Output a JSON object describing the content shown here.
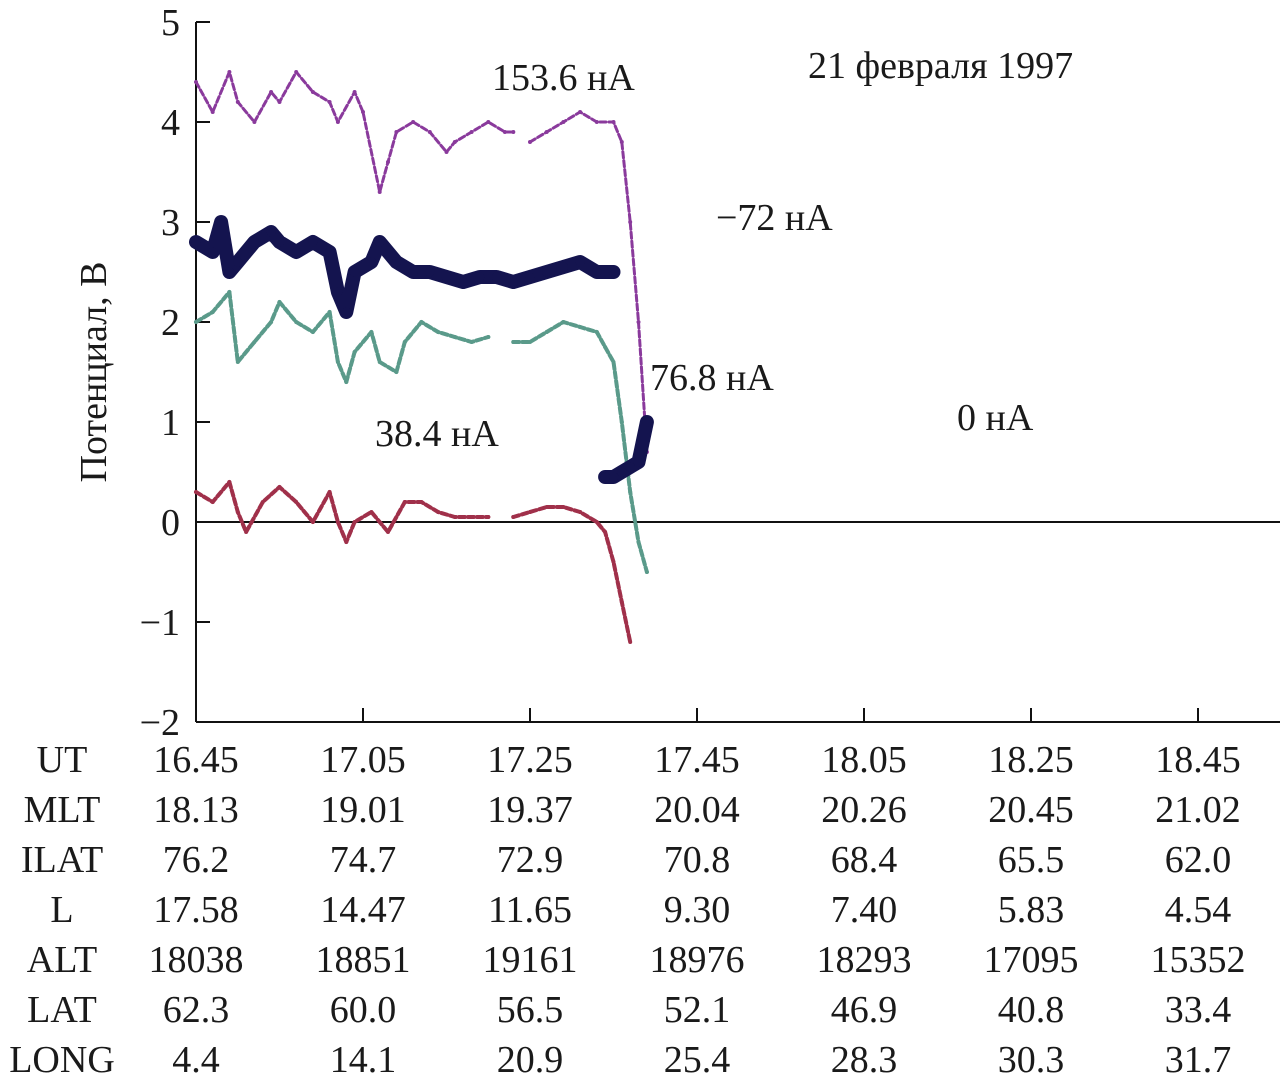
{
  "chart_data": {
    "type": "line",
    "title": "21 февраля 1997",
    "ylabel": "Потенциал, В",
    "ylim": [
      -2,
      5
    ],
    "yticks": [
      5,
      4,
      3,
      2,
      1,
      0,
      -1,
      -2
    ],
    "ytick_labels": [
      "5",
      "4",
      "3",
      "2",
      "1",
      "0",
      "−1",
      "−2"
    ],
    "x_ticks_ut": [
      "16.45",
      "17.05",
      "17.25",
      "17.45",
      "18.05",
      "18.25",
      "18.45"
    ],
    "zero_line": true,
    "series": [
      {
        "name": "153.6 нА",
        "color": "#8a3a9c",
        "points": [
          [
            0,
            4.4
          ],
          [
            2,
            4.1
          ],
          [
            4,
            4.5
          ],
          [
            5,
            4.2
          ],
          [
            7,
            4.0
          ],
          [
            9,
            4.3
          ],
          [
            10,
            4.2
          ],
          [
            12,
            4.5
          ],
          [
            14,
            4.3
          ],
          [
            16,
            4.2
          ],
          [
            17,
            4.0
          ],
          [
            19,
            4.3
          ],
          [
            20,
            4.1
          ],
          [
            22,
            3.3
          ],
          [
            23,
            3.6
          ],
          [
            24,
            3.9
          ],
          [
            26,
            4.0
          ],
          [
            28,
            3.9
          ],
          [
            30,
            3.7
          ],
          [
            31,
            3.8
          ],
          [
            33,
            3.9
          ],
          [
            35,
            4.0
          ],
          [
            37,
            3.9
          ],
          [
            38,
            3.9
          ],
          [
            null,
            null
          ],
          [
            40,
            3.8
          ],
          [
            42,
            3.9
          ],
          [
            44,
            4.0
          ],
          [
            46,
            4.1
          ],
          [
            48,
            4.0
          ],
          [
            50,
            4.0
          ],
          [
            51,
            3.8
          ],
          [
            52,
            3.0
          ],
          [
            53,
            2.0
          ],
          [
            54,
            0.7
          ]
        ]
      },
      {
        "name": "−72 нА",
        "color": "#14144f",
        "points": [
          [
            0,
            2.8
          ],
          [
            2,
            2.7
          ],
          [
            3,
            3.0
          ],
          [
            4,
            2.5
          ],
          [
            5,
            2.6
          ],
          [
            7,
            2.8
          ],
          [
            9,
            2.9
          ],
          [
            10,
            2.8
          ],
          [
            12,
            2.7
          ],
          [
            14,
            2.8
          ],
          [
            16,
            2.7
          ],
          [
            17,
            2.3
          ],
          [
            18,
            2.1
          ],
          [
            19,
            2.5
          ],
          [
            21,
            2.6
          ],
          [
            22,
            2.8
          ],
          [
            24,
            2.6
          ],
          [
            26,
            2.5
          ],
          [
            28,
            2.5
          ],
          [
            30,
            2.45
          ],
          [
            32,
            2.4
          ],
          [
            34,
            2.45
          ],
          [
            36,
            2.45
          ],
          [
            38,
            2.4
          ],
          [
            40,
            2.45
          ],
          [
            42,
            2.5
          ],
          [
            44,
            2.55
          ],
          [
            46,
            2.6
          ],
          [
            48,
            2.5
          ],
          [
            50,
            2.5
          ]
        ]
      },
      {
        "name": "76.8 нА",
        "color": "#5a9a8a",
        "points": [
          [
            0,
            2.0
          ],
          [
            2,
            2.1
          ],
          [
            4,
            2.3
          ],
          [
            5,
            1.6
          ],
          [
            7,
            1.8
          ],
          [
            9,
            2.0
          ],
          [
            10,
            2.2
          ],
          [
            12,
            2.0
          ],
          [
            14,
            1.9
          ],
          [
            16,
            2.1
          ],
          [
            17,
            1.6
          ],
          [
            18,
            1.4
          ],
          [
            19,
            1.7
          ],
          [
            21,
            1.9
          ],
          [
            22,
            1.6
          ],
          [
            24,
            1.5
          ],
          [
            25,
            1.8
          ],
          [
            27,
            2.0
          ],
          [
            29,
            1.9
          ],
          [
            31,
            1.85
          ],
          [
            33,
            1.8
          ],
          [
            35,
            1.85
          ],
          [
            null,
            null
          ],
          [
            38,
            1.8
          ],
          [
            40,
            1.8
          ],
          [
            42,
            1.9
          ],
          [
            44,
            2.0
          ],
          [
            46,
            1.95
          ],
          [
            48,
            1.9
          ],
          [
            49,
            1.75
          ],
          [
            50,
            1.6
          ],
          [
            51,
            1.0
          ],
          [
            52,
            0.3
          ],
          [
            53,
            -0.2
          ],
          [
            54,
            -0.5
          ]
        ]
      },
      {
        "name": "38.4 нА",
        "color": "#a0304a",
        "points": [
          [
            0,
            0.3
          ],
          [
            2,
            0.2
          ],
          [
            4,
            0.4
          ],
          [
            5,
            0.1
          ],
          [
            6,
            -0.1
          ],
          [
            8,
            0.2
          ],
          [
            10,
            0.35
          ],
          [
            12,
            0.2
          ],
          [
            14,
            0.0
          ],
          [
            16,
            0.3
          ],
          [
            17,
            0.0
          ],
          [
            18,
            -0.2
          ],
          [
            19,
            0.0
          ],
          [
            21,
            0.1
          ],
          [
            23,
            -0.1
          ],
          [
            25,
            0.2
          ],
          [
            27,
            0.2
          ],
          [
            29,
            0.1
          ],
          [
            31,
            0.05
          ],
          [
            33,
            0.05
          ],
          [
            35,
            0.05
          ],
          [
            null,
            null
          ],
          [
            38,
            0.05
          ],
          [
            40,
            0.1
          ],
          [
            42,
            0.15
          ],
          [
            44,
            0.15
          ],
          [
            46,
            0.1
          ],
          [
            48,
            0.0
          ],
          [
            49,
            -0.1
          ],
          [
            50,
            -0.4
          ],
          [
            51,
            -0.8
          ],
          [
            52,
            -1.2
          ]
        ]
      },
      {
        "name": "0 нА",
        "color": "#14144f",
        "points": [
          [
            49,
            0.45
          ],
          [
            50,
            0.45
          ],
          [
            51,
            0.5
          ],
          [
            52,
            0.55
          ],
          [
            53,
            0.6
          ],
          [
            54,
            1.0
          ]
        ]
      }
    ],
    "annotations": [
      "153.6 нА",
      "−72 нА",
      "76.8 нА",
      "38.4 нА",
      "0 нА"
    ],
    "table": {
      "rows": [
        {
          "label": "UT",
          "values": [
            "16.45",
            "17.05",
            "17.25",
            "17.45",
            "18.05",
            "18.25",
            "18.45"
          ]
        },
        {
          "label": "MLT",
          "values": [
            "18.13",
            "19.01",
            "19.37",
            "20.04",
            "20.26",
            "20.45",
            "21.02"
          ]
        },
        {
          "label": "ILAT",
          "values": [
            "76.2",
            "74.7",
            "72.9",
            "70.8",
            "68.4",
            "65.5",
            "62.0"
          ]
        },
        {
          "label": "L",
          "values": [
            "17.58",
            "14.47",
            "11.65",
            "9.30",
            "7.40",
            "5.83",
            "4.54"
          ]
        },
        {
          "label": "ALT",
          "values": [
            "18038",
            "18851",
            "19161",
            "18976",
            "18293",
            "17095",
            "15352"
          ]
        },
        {
          "label": "LAT",
          "values": [
            "62.3",
            "60.0",
            "56.5",
            "52.1",
            "46.9",
            "40.8",
            "33.4"
          ]
        },
        {
          "label": "LONG",
          "values": [
            "4.4",
            "14.1",
            "20.9",
            "25.4",
            "28.3",
            "30.3",
            "31.7"
          ]
        }
      ]
    }
  }
}
